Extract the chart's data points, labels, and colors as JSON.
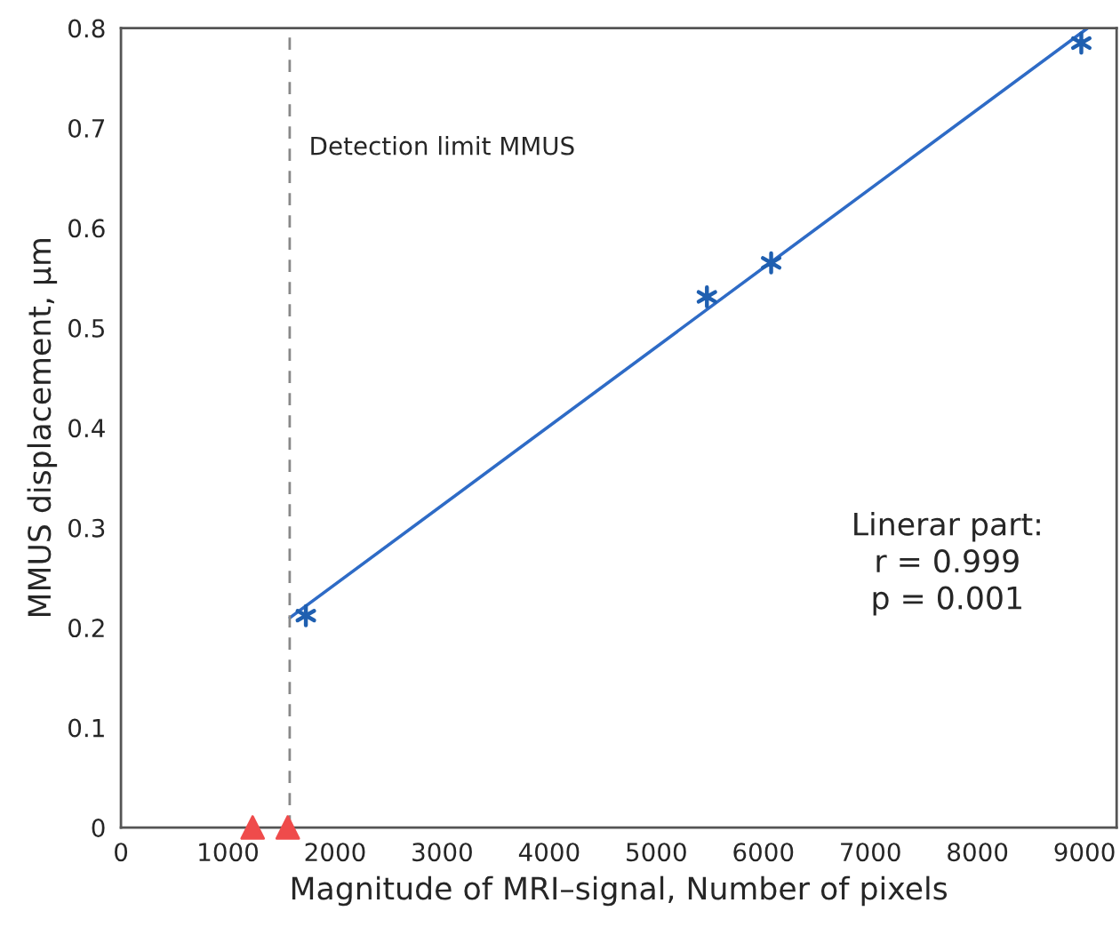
{
  "chart_data": {
    "type": "scatter",
    "xlabel": "Magnitude of MRI–signal, Number of pixels",
    "ylabel": "MMUS displacement, µm",
    "xlim": [
      0,
      9300
    ],
    "xticks": [
      0,
      1000,
      2000,
      3000,
      4000,
      5000,
      6000,
      7000,
      8000,
      9000
    ],
    "ylim": [
      0,
      0.8
    ],
    "yticks": [
      0,
      0.1,
      0.2,
      0.3,
      0.4,
      0.5,
      0.6,
      0.7,
      0.8
    ],
    "grid": false,
    "legend": false,
    "series": [
      {
        "marker": "cross",
        "color": "#1f5fb0",
        "x": [
          1727,
          5473,
          6073,
          8970
        ],
        "values": [
          0.212,
          0.531,
          0.565,
          0.785
        ]
      },
      {
        "type": "scatter",
        "marker": "triangle",
        "color": "#ef4b4b",
        "x": [
          1230,
          1558
        ],
        "values": [
          0,
          0
        ]
      },
      {
        "type": "line",
        "marker": "none",
        "line_style": "solid",
        "color": "#2e6bc6",
        "x": [
          1580,
          9030
        ],
        "values": [
          0.21,
          0.8
        ]
      }
    ],
    "ref_lines": [
      {
        "axis": "x",
        "value": 1576,
        "label": "Detection limit MMUS",
        "color": "#888888",
        "line_style": "dashed"
      }
    ],
    "annotations": [
      "Linerar part:\nr = 0.999\np = 0.001"
    ]
  }
}
